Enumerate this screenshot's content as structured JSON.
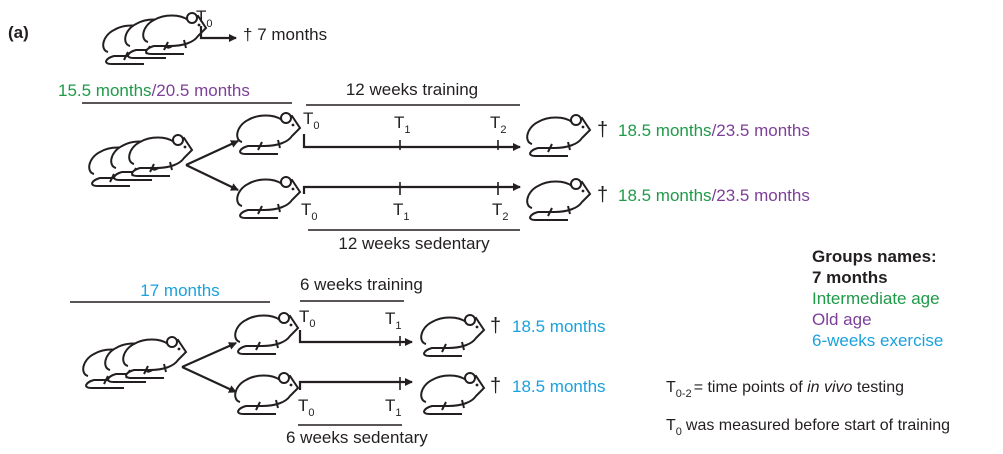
{
  "panel_label": "(a)",
  "baseline": {
    "timepoint": {
      "letter": "T",
      "sub": "0"
    },
    "dagger": "†",
    "age": "7 months"
  },
  "long_study": {
    "start_ages": [
      "15.5 months",
      "/",
      "20.5 months"
    ],
    "training": {
      "label": "12 weeks training",
      "timepoints": [
        {
          "letter": "T",
          "sub": "0"
        },
        {
          "letter": "T",
          "sub": "1"
        },
        {
          "letter": "T",
          "sub": "2"
        }
      ],
      "dagger": "†",
      "end_ages": [
        "18.5 months",
        "/",
        "23.5 months"
      ]
    },
    "sedentary": {
      "label": "12 weeks sedentary",
      "timepoints": [
        {
          "letter": "T",
          "sub": "0"
        },
        {
          "letter": "T",
          "sub": "1"
        },
        {
          "letter": "T",
          "sub": "2"
        }
      ],
      "dagger": "†",
      "end_ages": [
        "18.5 months",
        "/",
        "23.5 months"
      ]
    }
  },
  "short_study": {
    "start_age": "17 months",
    "training": {
      "label": "6 weeks training",
      "timepoints": [
        {
          "letter": "T",
          "sub": "0"
        },
        {
          "letter": "T",
          "sub": "1"
        }
      ],
      "dagger": "†",
      "end_age": "18.5 months"
    },
    "sedentary": {
      "label": "6 weeks sedentary",
      "timepoints": [
        {
          "letter": "T",
          "sub": "0"
        },
        {
          "letter": "T",
          "sub": "1"
        }
      ],
      "dagger": "†",
      "end_age": "18.5 months"
    }
  },
  "legend": {
    "title": "Groups names:",
    "items": [
      "7 months",
      "Intermediate age",
      "Old age",
      "6-weeks exercise"
    ]
  },
  "notes": [
    {
      "letter": "T",
      "sub": "0-2",
      "text": "= time points of ",
      "italic": "in vivo",
      "rest": " testing"
    },
    {
      "letter": "T",
      "sub": "0",
      "text": "was measured before start of training"
    }
  ]
}
